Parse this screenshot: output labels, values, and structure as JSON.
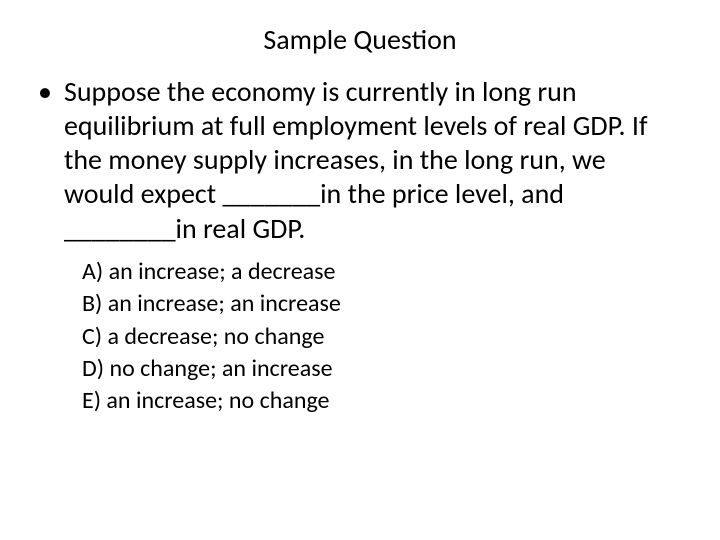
{
  "title": "Sample Question",
  "question": "Suppose the economy is currently in long run equilibrium at full employment levels of real GDP.  If the money supply increases, in the long run, we would expect _______in the price level, and ________in real GDP.",
  "options": {
    "a": "A) an increase; a decrease",
    "b": "B) an increase; an increase",
    "c": "C) a decrease; no change",
    "d": "D) no change; an increase",
    "e": "E) an increase; no change"
  },
  "style": {
    "background_color": "#ffffff",
    "text_color": "#000000",
    "title_fontsize": 28,
    "body_fontsize": 28,
    "option_fontsize": 24,
    "font_family": "Calibri"
  }
}
